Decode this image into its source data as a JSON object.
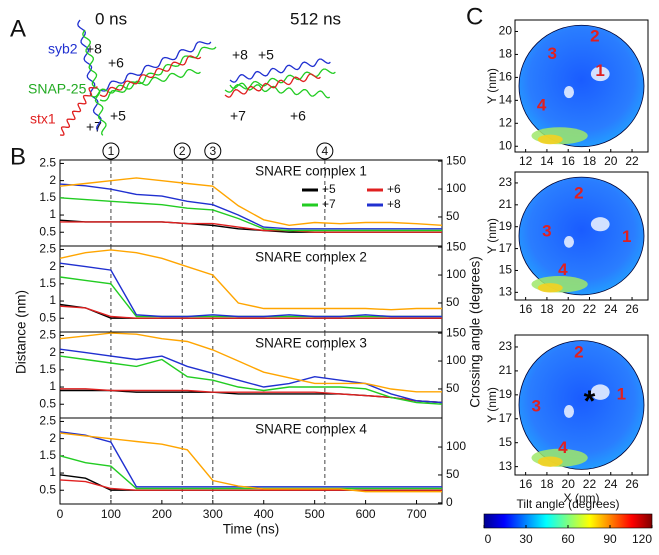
{
  "panel_labels": [
    "A",
    "B",
    "C"
  ],
  "panel_a": {
    "times": [
      "0 ns",
      "512 ns"
    ],
    "helices": [
      "syb2",
      "SNAP-25",
      "stx1"
    ],
    "layers_0": [
      "+8",
      "+6",
      "+5",
      "+7"
    ],
    "layers_512": [
      "+8",
      "+5",
      "+7",
      "+6"
    ]
  },
  "panel_b": {
    "xlabel": "Time (ns)",
    "ylabel": "Distance (nm)",
    "y2label": "Crossing angle (degrees)",
    "events": [
      {
        "x": 100,
        "label": "1"
      },
      {
        "x": 240,
        "label": "2"
      },
      {
        "x": 300,
        "label": "3"
      },
      {
        "x": 520,
        "label": "4"
      }
    ]
  },
  "chart_data": [
    {
      "type": "line",
      "title": "SNARE complex 1",
      "legend": "upper right",
      "x": [
        0,
        50,
        100,
        150,
        200,
        250,
        300,
        350,
        400,
        450,
        500,
        550,
        600,
        650,
        700,
        750
      ],
      "xlim": [
        0,
        750
      ],
      "ylim": [
        0.1,
        2.6
      ],
      "yticks": [
        0.5,
        1,
        1.5,
        2,
        2.5
      ],
      "y2lim": [
        -2,
        152
      ],
      "y2ticks": [
        50,
        100,
        150
      ],
      "series": [
        {
          "name": "+5",
          "color": "#000000",
          "values": [
            0.85,
            0.8,
            0.8,
            0.8,
            0.8,
            0.75,
            0.7,
            0.6,
            0.55,
            0.5,
            0.5,
            0.5,
            0.5,
            0.5,
            0.5,
            0.5
          ]
        },
        {
          "name": "+6",
          "color": "#e02020",
          "values": [
            0.8,
            0.8,
            0.8,
            0.8,
            0.8,
            0.75,
            0.75,
            0.65,
            0.55,
            0.55,
            0.5,
            0.5,
            0.5,
            0.5,
            0.5,
            0.5
          ]
        },
        {
          "name": "+7",
          "color": "#22cc22",
          "values": [
            1.5,
            1.45,
            1.4,
            1.35,
            1.3,
            1.2,
            1.15,
            0.9,
            0.6,
            0.55,
            0.55,
            0.55,
            0.55,
            0.55,
            0.55,
            0.55
          ]
        },
        {
          "name": "+8",
          "color": "#2030d0",
          "values": [
            1.9,
            1.85,
            1.75,
            1.6,
            1.55,
            1.4,
            1.3,
            1.0,
            0.65,
            0.6,
            0.6,
            0.6,
            0.6,
            0.6,
            0.6,
            0.6
          ]
        },
        {
          "color": "#ffa500",
          "axis": "y2",
          "values": [
            105,
            110,
            115,
            120,
            115,
            110,
            105,
            70,
            45,
            35,
            40,
            38,
            40,
            40,
            38,
            35
          ]
        }
      ]
    },
    {
      "type": "line",
      "title": "SNARE complex 2",
      "x": [
        0,
        50,
        100,
        150,
        200,
        250,
        300,
        350,
        400,
        450,
        500,
        550,
        600,
        650,
        700,
        750
      ],
      "xlim": [
        0,
        750
      ],
      "ylim": [
        0.1,
        2.6
      ],
      "yticks": [
        0.5,
        1,
        1.5,
        2,
        2.5
      ],
      "y2lim": [
        -2,
        152
      ],
      "y2ticks": [
        50,
        100,
        150
      ],
      "series": [
        {
          "color": "#000000",
          "values": [
            0.9,
            0.8,
            0.5,
            0.5,
            0.5,
            0.5,
            0.5,
            0.5,
            0.5,
            0.5,
            0.5,
            0.5,
            0.5,
            0.5,
            0.5,
            0.5
          ]
        },
        {
          "color": "#e02020",
          "values": [
            0.85,
            0.8,
            0.55,
            0.5,
            0.5,
            0.5,
            0.5,
            0.5,
            0.5,
            0.5,
            0.5,
            0.5,
            0.5,
            0.5,
            0.5,
            0.5
          ]
        },
        {
          "color": "#22cc22",
          "values": [
            1.7,
            1.6,
            1.5,
            0.55,
            0.55,
            0.55,
            0.55,
            0.55,
            0.55,
            0.55,
            0.55,
            0.55,
            0.55,
            0.55,
            0.55,
            0.55
          ]
        },
        {
          "color": "#2030d0",
          "values": [
            2.1,
            2.0,
            1.9,
            0.6,
            0.55,
            0.55,
            0.6,
            0.55,
            0.55,
            0.6,
            0.55,
            0.55,
            0.6,
            0.55,
            0.55,
            0.55
          ]
        },
        {
          "color": "#ffa500",
          "axis": "y2",
          "values": [
            130,
            140,
            145,
            140,
            130,
            115,
            100,
            50,
            40,
            40,
            40,
            40,
            40,
            38,
            40,
            40
          ]
        }
      ]
    },
    {
      "type": "line",
      "title": "SNARE complex 3",
      "x": [
        0,
        50,
        100,
        150,
        200,
        250,
        300,
        350,
        400,
        450,
        500,
        550,
        600,
        650,
        700,
        750
      ],
      "xlim": [
        0,
        750
      ],
      "ylim": [
        0.1,
        2.6
      ],
      "yticks": [
        0.5,
        1,
        1.5,
        2,
        2.5
      ],
      "y2lim": [
        -2,
        152
      ],
      "y2ticks": [
        50,
        100,
        150
      ],
      "series": [
        {
          "color": "#000000",
          "values": [
            0.9,
            0.9,
            0.9,
            0.85,
            0.85,
            0.85,
            0.85,
            0.8,
            0.8,
            0.8,
            0.8,
            0.8,
            0.75,
            0.7,
            0.6,
            0.55
          ]
        },
        {
          "color": "#e02020",
          "values": [
            0.95,
            0.95,
            0.9,
            0.9,
            0.9,
            0.9,
            0.85,
            0.85,
            0.85,
            0.85,
            0.85,
            0.8,
            0.75,
            0.7,
            0.6,
            0.55
          ]
        },
        {
          "color": "#22cc22",
          "values": [
            1.9,
            1.8,
            1.7,
            1.6,
            1.8,
            1.3,
            1.2,
            1.0,
            0.9,
            1.0,
            1.0,
            1.0,
            0.95,
            0.7,
            0.55,
            0.5
          ]
        },
        {
          "color": "#2030d0",
          "values": [
            2.1,
            2.0,
            1.9,
            1.8,
            1.9,
            1.6,
            1.4,
            1.2,
            1.0,
            1.1,
            1.3,
            1.2,
            1.1,
            0.8,
            0.6,
            0.55
          ]
        },
        {
          "color": "#ffa500",
          "axis": "y2",
          "values": [
            140,
            145,
            150,
            148,
            140,
            135,
            120,
            100,
            80,
            70,
            60,
            60,
            60,
            50,
            45,
            45
          ]
        }
      ]
    },
    {
      "type": "line",
      "title": "SNARE complex 4",
      "x": [
        0,
        50,
        100,
        150,
        200,
        250,
        300,
        350,
        400,
        450,
        500,
        550,
        600,
        650,
        700,
        750
      ],
      "xlim": [
        0,
        750
      ],
      "xticks": [
        0,
        100,
        200,
        300,
        400,
        500,
        600,
        700
      ],
      "ylim": [
        0.1,
        2.6
      ],
      "yticks": [
        0.5,
        1,
        1.5,
        2,
        2.5
      ],
      "y2lim": [
        -2,
        152
      ],
      "y2ticks": [
        0,
        50,
        100
      ],
      "series": [
        {
          "color": "#000000",
          "values": [
            0.95,
            0.85,
            0.5,
            0.5,
            0.5,
            0.5,
            0.5,
            0.5,
            0.5,
            0.5,
            0.5,
            0.5,
            0.5,
            0.5,
            0.5,
            0.5
          ]
        },
        {
          "color": "#e02020",
          "values": [
            0.8,
            0.75,
            0.55,
            0.5,
            0.5,
            0.5,
            0.5,
            0.5,
            0.5,
            0.5,
            0.5,
            0.5,
            0.5,
            0.5,
            0.5,
            0.5
          ]
        },
        {
          "color": "#22cc22",
          "values": [
            1.5,
            1.3,
            1.2,
            0.55,
            0.55,
            0.55,
            0.55,
            0.55,
            0.55,
            0.55,
            0.55,
            0.55,
            0.55,
            0.55,
            0.55,
            0.55
          ]
        },
        {
          "color": "#2030d0",
          "values": [
            2.2,
            2.1,
            1.9,
            0.6,
            0.6,
            0.6,
            0.6,
            0.6,
            0.6,
            0.6,
            0.6,
            0.6,
            0.6,
            0.6,
            0.6,
            0.6
          ]
        },
        {
          "color": "#ffa500",
          "axis": "y2",
          "values": [
            125,
            120,
            115,
            110,
            105,
            95,
            40,
            30,
            25,
            25,
            25,
            25,
            20,
            20,
            20,
            20
          ]
        }
      ]
    },
    {
      "type": "map",
      "ylabel": "Y (nm)",
      "xlim": [
        11,
        23.5
      ],
      "ylim": [
        9.5,
        21
      ],
      "xticks": [
        12,
        14,
        16,
        18,
        20,
        22
      ],
      "yticks": [
        10,
        12,
        14,
        16,
        18,
        20
      ],
      "annotations": [
        {
          "text": "1",
          "x": 19,
          "y": 16.5
        },
        {
          "text": "2",
          "x": 18.5,
          "y": 19.5
        },
        {
          "text": "3",
          "x": 14.5,
          "y": 18
        },
        {
          "text": "4",
          "x": 13.5,
          "y": 13.5
        }
      ]
    },
    {
      "type": "map",
      "ylabel": "Y (nm)",
      "xlim": [
        15,
        27.5
      ],
      "ylim": [
        12.3,
        24
      ],
      "xticks": [
        16,
        18,
        20,
        22,
        24,
        26
      ],
      "yticks": [
        13,
        15,
        17,
        19,
        21,
        23
      ],
      "annotations": [
        {
          "text": "1",
          "x": 25.5,
          "y": 18
        },
        {
          "text": "2",
          "x": 21,
          "y": 22
        },
        {
          "text": "3",
          "x": 18,
          "y": 18.5
        },
        {
          "text": "4",
          "x": 19.5,
          "y": 15
        }
      ]
    },
    {
      "type": "map",
      "xlabel": "X (nm)",
      "ylabel": "Y (nm)",
      "xlim": [
        15,
        27.5
      ],
      "ylim": [
        12.3,
        24
      ],
      "xticks": [
        16,
        18,
        20,
        22,
        24,
        26
      ],
      "yticks": [
        13,
        15,
        17,
        19,
        21,
        23
      ],
      "annotations": [
        {
          "text": "1",
          "x": 25,
          "y": 19
        },
        {
          "text": "2",
          "x": 21,
          "y": 22.5
        },
        {
          "text": "3",
          "x": 17,
          "y": 18
        },
        {
          "text": "4",
          "x": 19.5,
          "y": 14.5
        },
        {
          "text": "*",
          "x": 22,
          "y": 18.3
        }
      ]
    },
    {
      "type": "colorbar",
      "title": "Tilt angle (degrees)",
      "xlim": [
        0,
        120
      ],
      "xticks": [
        0,
        30,
        60,
        90,
        120
      ]
    }
  ]
}
